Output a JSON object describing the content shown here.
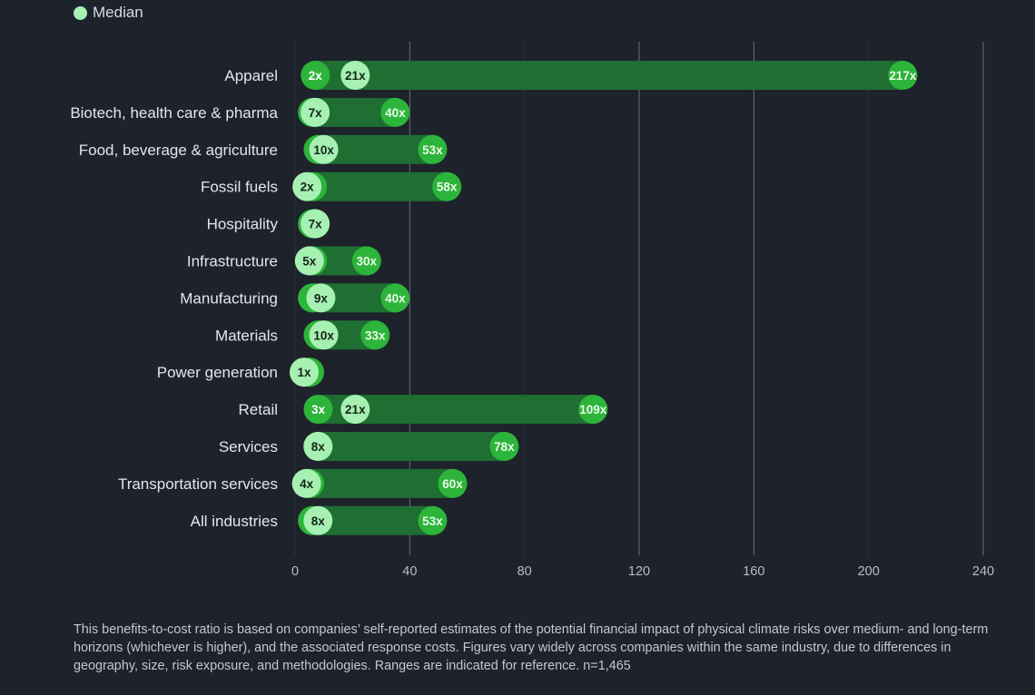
{
  "legend": {
    "median_label": "Median"
  },
  "colors": {
    "background": "#1e222b",
    "bar": "#1f6e32",
    "min_max_circle": "#2db43a",
    "median_circle": "#a6f0b2"
  },
  "chart_data": {
    "type": "bar",
    "subtype": "range-bar with min, median, max markers",
    "xlim": [
      0,
      240
    ],
    "xticks": [
      0,
      40,
      80,
      120,
      160,
      200,
      240
    ],
    "grid": "vertical",
    "legend": "top-left",
    "categories": [
      "Apparel",
      "Biotech, health care & pharma",
      "Food, beverage & agriculture",
      "Fossil fuels",
      "Hospitality",
      "Infrastructure",
      "Manufacturing",
      "Materials",
      "Power generation",
      "Retail",
      "Services",
      "Transportation services",
      "All industries"
    ],
    "rows": [
      {
        "min": 2,
        "min_label": "2x",
        "median": 21,
        "median_label": "21x",
        "max": 217,
        "max_label": "217x"
      },
      {
        "min": 1,
        "median": 7,
        "median_label": "7x",
        "max": 40,
        "max_label": "40x"
      },
      {
        "min": 3,
        "median": 10,
        "median_label": "10x",
        "max": 53,
        "max_label": "53x"
      },
      {
        "min": 1,
        "median": 2,
        "median_label": "2x",
        "max": 58,
        "max_label": "58x"
      },
      {
        "min": 1,
        "median": 7,
        "median_label": "7x",
        "max": null
      },
      {
        "min": 1,
        "median": 5,
        "median_label": "5x",
        "max": 30,
        "max_label": "30x"
      },
      {
        "min": 1,
        "median": 9,
        "median_label": "9x",
        "max": 40,
        "max_label": "40x"
      },
      {
        "min": 3,
        "median": 10,
        "median_label": "10x",
        "max": 33,
        "max_label": "33x"
      },
      {
        "min": 0,
        "median": 1,
        "median_label": "1x",
        "max": null
      },
      {
        "min": 3,
        "min_label": "3x",
        "median": 21,
        "median_label": "21x",
        "max": 109,
        "max_label": "109x"
      },
      {
        "min": 3,
        "median": 8,
        "median_label": "8x",
        "max": 78,
        "max_label": "78x"
      },
      {
        "min": 0,
        "median": 4,
        "median_label": "4x",
        "max": 60,
        "max_label": "60x"
      },
      {
        "min": 1,
        "median": 8,
        "median_label": "8x",
        "max": 53,
        "max_label": "53x"
      }
    ]
  },
  "footnote": "This benefits-to-cost ratio is based on companies’ self-reported estimates of the potential financial impact of physical climate risks over medium- and long-term horizons (whichever is higher), and the associated response costs. Figures vary widely across companies within the same industry, due to differences in geography, size, risk exposure, and methodologies. Ranges are indicated for reference. n=1,465"
}
